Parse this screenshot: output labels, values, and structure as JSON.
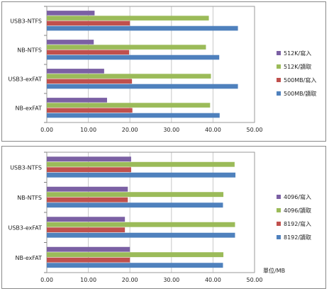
{
  "chart_data": [
    {
      "type": "bar",
      "orientation": "horizontal",
      "categories": [
        "USB3-NTFS",
        "NB-NTFS",
        "USB3-exFAT",
        "NB-exFAT"
      ],
      "series": [
        {
          "name": "512K/寫入",
          "color": "#7b60a4",
          "values": [
            11.5,
            11.3,
            13.8,
            14.5
          ]
        },
        {
          "name": "512K/讀取",
          "color": "#9bbb59",
          "values": [
            39.0,
            38.3,
            39.5,
            39.3
          ]
        },
        {
          "name": "500MB/寫入",
          "color": "#c0504d",
          "values": [
            20.0,
            19.8,
            20.5,
            20.6
          ]
        },
        {
          "name": "500MB/讀取",
          "color": "#4f81bd",
          "values": [
            46.0,
            41.5,
            46.0,
            41.6
          ]
        }
      ],
      "xlim": [
        0,
        50
      ],
      "xticks": [
        "0.00",
        "10.00",
        "20.00",
        "30.00",
        "40.00",
        "50.00"
      ],
      "grid": true,
      "legend_position": "right"
    },
    {
      "type": "bar",
      "orientation": "horizontal",
      "categories": [
        "USB3-NTFS",
        "NB-NTFS",
        "USB3-exFAT",
        "NB-exFAT"
      ],
      "series": [
        {
          "name": "4096/寫入",
          "color": "#7b60a4",
          "values": [
            20.3,
            19.5,
            18.8,
            20.0
          ]
        },
        {
          "name": "4096/讀取",
          "color": "#9bbb59",
          "values": [
            45.2,
            42.5,
            45.3,
            42.5
          ]
        },
        {
          "name": "8192/寫入",
          "color": "#c0504d",
          "values": [
            20.3,
            19.5,
            18.8,
            20.0
          ]
        },
        {
          "name": "8192/讀取",
          "color": "#4f81bd",
          "values": [
            45.4,
            42.4,
            45.3,
            42.4
          ]
        }
      ],
      "xlim": [
        0,
        50
      ],
      "xticks": [
        "0.00",
        "10.00",
        "20.00",
        "30.00",
        "40.00",
        "50.00"
      ],
      "unit_label": "單位/MB",
      "grid": true,
      "legend_position": "right"
    }
  ]
}
